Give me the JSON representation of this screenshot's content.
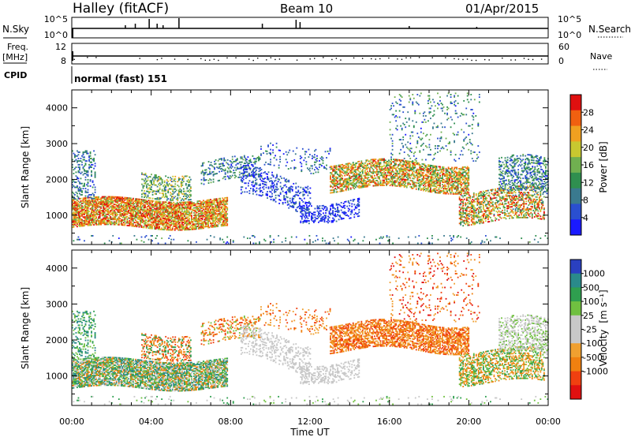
{
  "header": {
    "station": "Halley (fitACF)",
    "beam": "Beam 10",
    "date": "01/Apr/2015"
  },
  "top_panels": {
    "nsky_label": "N.Sky",
    "nsky_ticks": [
      "10^5",
      "10^0"
    ],
    "nsearch_label": "N.Search",
    "nsearch_ticks": [
      "10^5",
      "10^0"
    ],
    "freq_label": "Freq.",
    "freq_unit": "[MHz]",
    "freq_ticks": [
      "12",
      "8"
    ],
    "nave_label": "Nave",
    "nave_ticks": [
      "60",
      "0"
    ],
    "cpid_label": "CPID",
    "cpid_value": "normal (fast) 151"
  },
  "colors": {
    "power": [
      "#1a1aff",
      "#2a4fd0",
      "#3a7a8f",
      "#2f8f4f",
      "#70b050",
      "#c8c830",
      "#f0a020",
      "#f06010",
      "#e01010"
    ],
    "velocity": [
      "#e01010",
      "#f04010",
      "#f08010",
      "#f0a030",
      "#c8c8c8",
      "#c8c8c8",
      "#70c040",
      "#2f9f4f",
      "#2a8a8a",
      "#2a40c0"
    ]
  },
  "chart_data": [
    {
      "type": "heatmap",
      "ylabel": "Slant Range [km]",
      "ylim": [
        180,
        4500
      ],
      "yticks": [
        "1000",
        "2000",
        "3000",
        "4000"
      ],
      "xlim": [
        0,
        24
      ],
      "colorbar": {
        "label": "Power [dB]",
        "range": [
          0,
          32
        ],
        "ticks": [
          "4",
          "8",
          "12",
          "16",
          "20",
          "24",
          "28"
        ]
      }
    },
    {
      "type": "heatmap",
      "ylabel": "Slant Range [km]",
      "xlabel": "Time UT",
      "ylim": [
        180,
        4500
      ],
      "yticks": [
        "1000",
        "2000",
        "3000",
        "4000"
      ],
      "xlim": [
        0,
        24
      ],
      "xticks": [
        "00:00",
        "04:00",
        "08:00",
        "12:00",
        "16:00",
        "20:00",
        "00:00"
      ],
      "colorbar": {
        "label": "Velocity",
        "unit": "[m s⁻¹]",
        "ticks": [
          "1000",
          "500",
          "100",
          "25",
          "-25",
          "-100",
          "-500",
          "-1000"
        ]
      }
    }
  ]
}
